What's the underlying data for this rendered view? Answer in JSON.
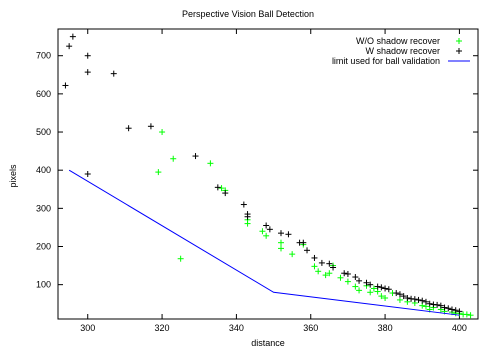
{
  "chart_data": {
    "type": "scatter",
    "title": "Perspective Vision Ball Detection",
    "xlabel": "distance",
    "ylabel": "pixels",
    "xlim": [
      292,
      405
    ],
    "ylim": [
      10,
      770
    ],
    "xticks": [
      300,
      320,
      340,
      360,
      380,
      400
    ],
    "yticks": [
      100,
      200,
      300,
      400,
      500,
      600,
      700
    ],
    "legend_position": "top-right",
    "grid": false,
    "series": [
      {
        "name": "W/O shadow recover",
        "marker": "plus",
        "color": "#00ff00",
        "points": [
          [
            320,
            500
          ],
          [
            319,
            395
          ],
          [
            323,
            430
          ],
          [
            325,
            168
          ],
          [
            333,
            418
          ],
          [
            336,
            353
          ],
          [
            337,
            347
          ],
          [
            343,
            260
          ],
          [
            343,
            270
          ],
          [
            347,
            240
          ],
          [
            348,
            228
          ],
          [
            352,
            210
          ],
          [
            352,
            195
          ],
          [
            355,
            180
          ],
          [
            358,
            205
          ],
          [
            361,
            148
          ],
          [
            362,
            135
          ],
          [
            364,
            125
          ],
          [
            365,
            130
          ],
          [
            366,
            150
          ],
          [
            368,
            118
          ],
          [
            370,
            108
          ],
          [
            372,
            95
          ],
          [
            373,
            85
          ],
          [
            375,
            97
          ],
          [
            376,
            80
          ],
          [
            377,
            90
          ],
          [
            378,
            82
          ],
          [
            379,
            70
          ],
          [
            380,
            65
          ],
          [
            382,
            78
          ],
          [
            384,
            60
          ],
          [
            386,
            55
          ],
          [
            388,
            52
          ],
          [
            390,
            45
          ],
          [
            391,
            43
          ],
          [
            392,
            35
          ],
          [
            393,
            40
          ],
          [
            395,
            35
          ],
          [
            396,
            30
          ],
          [
            398,
            28
          ],
          [
            399,
            25
          ],
          [
            400,
            25
          ],
          [
            401,
            22
          ],
          [
            402,
            22
          ],
          [
            403,
            20
          ]
        ]
      },
      {
        "name": "W shadow recover",
        "marker": "plus",
        "color": "#000000",
        "points": [
          [
            296,
            750
          ],
          [
            295,
            725
          ],
          [
            294,
            622
          ],
          [
            300,
            700
          ],
          [
            300,
            657
          ],
          [
            307,
            653
          ],
          [
            300,
            390
          ],
          [
            311,
            510
          ],
          [
            317,
            515
          ],
          [
            329,
            437
          ],
          [
            335,
            355
          ],
          [
            337,
            340
          ],
          [
            342,
            310
          ],
          [
            343,
            285
          ],
          [
            343,
            278
          ],
          [
            348,
            255
          ],
          [
            349,
            245
          ],
          [
            352,
            235
          ],
          [
            354,
            232
          ],
          [
            357,
            210
          ],
          [
            358,
            210
          ],
          [
            359,
            190
          ],
          [
            361,
            170
          ],
          [
            363,
            157
          ],
          [
            365,
            155
          ],
          [
            366,
            145
          ],
          [
            369,
            130
          ],
          [
            370,
            128
          ],
          [
            372,
            120
          ],
          [
            373,
            110
          ],
          [
            375,
            105
          ],
          [
            376,
            100
          ],
          [
            378,
            95
          ],
          [
            379,
            93
          ],
          [
            380,
            90
          ],
          [
            381,
            88
          ],
          [
            383,
            78
          ],
          [
            384,
            75
          ],
          [
            385,
            70
          ],
          [
            386,
            65
          ],
          [
            387,
            63
          ],
          [
            388,
            62
          ],
          [
            389,
            60
          ],
          [
            390,
            58
          ],
          [
            391,
            55
          ],
          [
            392,
            50
          ],
          [
            393,
            48
          ],
          [
            394,
            47
          ],
          [
            395,
            45
          ],
          [
            396,
            40
          ],
          [
            397,
            38
          ],
          [
            398,
            35
          ],
          [
            399,
            33
          ],
          [
            400,
            30
          ]
        ]
      },
      {
        "name": "limit used for ball validation",
        "marker": "line",
        "color": "#0000ff",
        "points": [
          [
            295,
            400
          ],
          [
            350,
            80
          ],
          [
            400,
            20
          ]
        ]
      }
    ]
  }
}
